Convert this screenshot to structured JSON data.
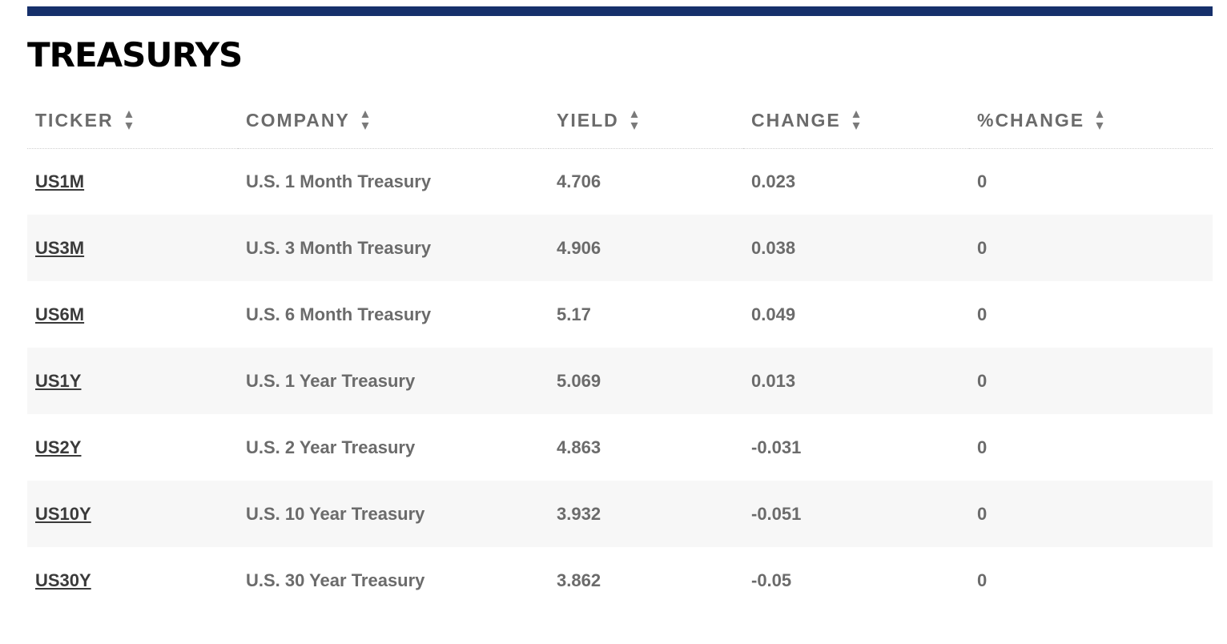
{
  "title": "TREASURYS",
  "columns": [
    {
      "label": "TICKER"
    },
    {
      "label": "COMPANY"
    },
    {
      "label": "YIELD"
    },
    {
      "label": "CHANGE"
    },
    {
      "label": "%CHANGE"
    }
  ],
  "rows": [
    {
      "ticker": "US1M",
      "company": "U.S. 1 Month Treasury",
      "yield": "4.706",
      "change": "0.023",
      "pct_change": "0"
    },
    {
      "ticker": "US3M",
      "company": "U.S. 3 Month Treasury",
      "yield": "4.906",
      "change": "0.038",
      "pct_change": "0"
    },
    {
      "ticker": "US6M",
      "company": "U.S. 6 Month Treasury",
      "yield": "5.17",
      "change": "0.049",
      "pct_change": "0"
    },
    {
      "ticker": "US1Y",
      "company": "U.S. 1 Year Treasury",
      "yield": "5.069",
      "change": "0.013",
      "pct_change": "0"
    },
    {
      "ticker": "US2Y",
      "company": "U.S. 2 Year Treasury",
      "yield": "4.863",
      "change": "-0.031",
      "pct_change": "0"
    },
    {
      "ticker": "US10Y",
      "company": "U.S. 10 Year Treasury",
      "yield": "3.932",
      "change": "-0.051",
      "pct_change": "0"
    },
    {
      "ticker": "US30Y",
      "company": "U.S. 30 Year Treasury",
      "yield": "3.862",
      "change": "-0.05",
      "pct_change": "0"
    }
  ],
  "colors": {
    "accent_bar": "#16306b",
    "text": "#6b6b6b",
    "link": "#3a3a3a",
    "row_alt": "#f7f7f7"
  },
  "icons": {
    "sort": "sort-arrows-icon"
  }
}
